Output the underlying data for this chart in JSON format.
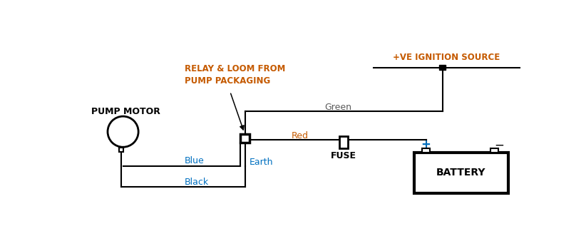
{
  "bg_color": "#ffffff",
  "relay_label_color": "#c55a00",
  "earth_label_color": "#0070c0",
  "red_label_color": "#c55a00",
  "green_label_color": "#595959",
  "battery_label_color": "#0070c0",
  "black_label_color": "#0070c0",
  "blue_label_color": "#0070c0",
  "ignition_label_color": "#c55a00",
  "plus_color": "#0070c0",
  "minus_color": "#000000",
  "pump_motor_label": "PUMP MOTOR",
  "relay_label": "RELAY & LOOM FROM\nPUMP PACKAGING",
  "earth_label": "Earth",
  "red_label": "Red",
  "green_label": "Green",
  "blue_label": "Blue",
  "black_label": "Black",
  "fuse_label": "FUSE",
  "battery_label": "BATTERY",
  "ignition_label": "+VE IGNITION SOURCE",
  "plus_label": "+",
  "minus_label": "−"
}
